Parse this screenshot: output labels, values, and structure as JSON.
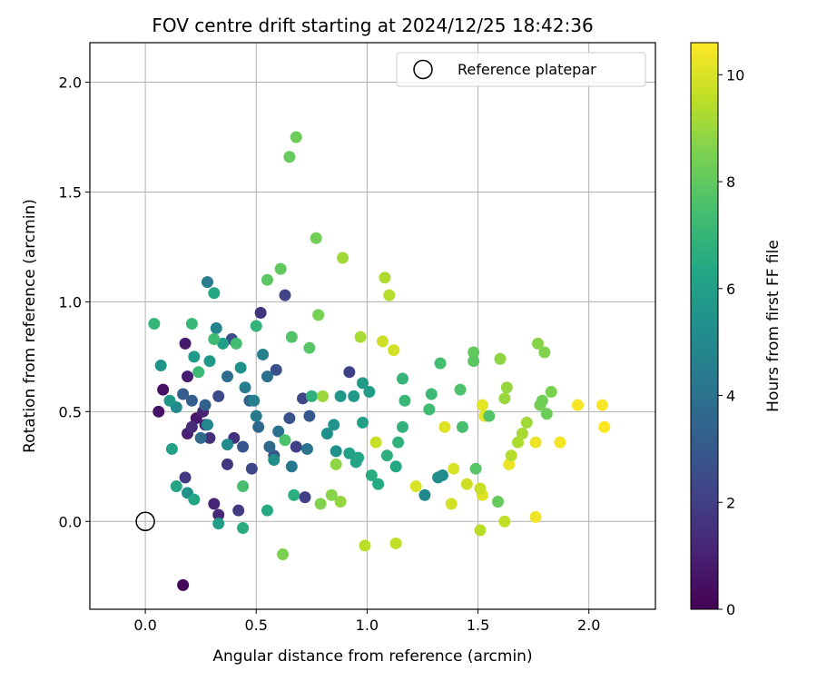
{
  "chart_data": {
    "type": "scatter",
    "title": "FOV centre drift starting at 2024/12/25 18:42:36",
    "xlabel": "Angular distance from reference (arcmin)",
    "ylabel": "Rotation from reference (arcmin)",
    "xlim": [
      -0.25,
      2.3
    ],
    "ylim": [
      -0.4,
      2.18
    ],
    "xticks": [
      0.0,
      0.5,
      1.0,
      1.5,
      2.0
    ],
    "yticks": [
      0.0,
      0.5,
      1.0,
      1.5,
      2.0
    ],
    "grid": true,
    "legend": {
      "placement": "top-right",
      "entries": [
        "Reference platepar"
      ]
    },
    "reference_point": {
      "x": 0.0,
      "y": 0.0,
      "label": "Reference platepar"
    },
    "colorbar": {
      "label": "Hours from first FF file",
      "colormap": "viridis",
      "range": [
        0,
        10.6
      ],
      "ticks": [
        0,
        2,
        4,
        6,
        8,
        10
      ]
    },
    "points": [
      {
        "x": 0.17,
        "y": -0.29,
        "h": 0.2
      },
      {
        "x": 0.08,
        "y": 0.6,
        "h": 0.5
      },
      {
        "x": 0.06,
        "y": 0.5,
        "h": 0.6
      },
      {
        "x": 0.18,
        "y": 0.81,
        "h": 0.8
      },
      {
        "x": 0.19,
        "y": 0.66,
        "h": 0.9
      },
      {
        "x": 0.23,
        "y": 0.47,
        "h": 0.7
      },
      {
        "x": 0.19,
        "y": 0.4,
        "h": 1.0
      },
      {
        "x": 0.31,
        "y": 0.08,
        "h": 1.1
      },
      {
        "x": 0.33,
        "y": 0.03,
        "h": 1.2
      },
      {
        "x": 0.26,
        "y": 0.5,
        "h": 1.1
      },
      {
        "x": 0.52,
        "y": 0.95,
        "h": 1.6
      },
      {
        "x": 0.27,
        "y": 0.44,
        "h": 1.3
      },
      {
        "x": 0.21,
        "y": 0.43,
        "h": 1.4
      },
      {
        "x": 0.29,
        "y": 0.38,
        "h": 1.5
      },
      {
        "x": 0.4,
        "y": 0.38,
        "h": 1.6
      },
      {
        "x": 0.37,
        "y": 0.26,
        "h": 1.7
      },
      {
        "x": 0.18,
        "y": 0.2,
        "h": 1.8
      },
      {
        "x": 0.42,
        "y": 0.05,
        "h": 1.9
      },
      {
        "x": 0.72,
        "y": 0.11,
        "h": 2.0
      },
      {
        "x": 0.92,
        "y": 0.68,
        "h": 2.1
      },
      {
        "x": 0.63,
        "y": 1.03,
        "h": 2.2
      },
      {
        "x": 0.48,
        "y": 0.24,
        "h": 2.3
      },
      {
        "x": 0.33,
        "y": 0.57,
        "h": 2.4
      },
      {
        "x": 0.39,
        "y": 0.83,
        "h": 2.5
      },
      {
        "x": 0.59,
        "y": 0.69,
        "h": 2.6
      },
      {
        "x": 0.65,
        "y": 0.47,
        "h": 2.7
      },
      {
        "x": 0.58,
        "y": 0.3,
        "h": 2.8
      },
      {
        "x": 0.44,
        "y": 0.34,
        "h": 2.9
      },
      {
        "x": 0.68,
        "y": 0.34,
        "h": 2.0
      },
      {
        "x": 0.71,
        "y": 0.56,
        "h": 2.2
      },
      {
        "x": 0.74,
        "y": 0.48,
        "h": 3.0
      },
      {
        "x": 0.17,
        "y": 0.58,
        "h": 3.1
      },
      {
        "x": 0.21,
        "y": 0.55,
        "h": 3.2
      },
      {
        "x": 0.27,
        "y": 0.53,
        "h": 3.3
      },
      {
        "x": 0.47,
        "y": 0.55,
        "h": 3.4
      },
      {
        "x": 0.51,
        "y": 0.43,
        "h": 3.5
      },
      {
        "x": 0.56,
        "y": 0.34,
        "h": 3.6
      },
      {
        "x": 0.25,
        "y": 0.38,
        "h": 3.7
      },
      {
        "x": 0.37,
        "y": 0.66,
        "h": 3.8
      },
      {
        "x": 0.55,
        "y": 0.66,
        "h": 3.9
      },
      {
        "x": 0.6,
        "y": 0.41,
        "h": 4.0
      },
      {
        "x": 0.73,
        "y": 0.33,
        "h": 4.1
      },
      {
        "x": 0.66,
        "y": 0.25,
        "h": 4.2
      },
      {
        "x": 0.5,
        "y": 0.48,
        "h": 4.3
      },
      {
        "x": 0.28,
        "y": 1.09,
        "h": 4.4
      },
      {
        "x": 0.45,
        "y": 0.61,
        "h": 4.5
      },
      {
        "x": 0.49,
        "y": 0.55,
        "h": 4.6
      },
      {
        "x": 0.53,
        "y": 0.76,
        "h": 4.7
      },
      {
        "x": 0.32,
        "y": 0.88,
        "h": 4.8
      },
      {
        "x": 0.28,
        "y": 0.44,
        "h": 4.9
      },
      {
        "x": 0.14,
        "y": 0.52,
        "h": 5.0
      },
      {
        "x": 0.37,
        "y": 0.35,
        "h": 5.1
      },
      {
        "x": 0.58,
        "y": 0.28,
        "h": 5.2
      },
      {
        "x": 0.43,
        "y": 0.7,
        "h": 5.3
      },
      {
        "x": 0.19,
        "y": 0.13,
        "h": 5.4
      },
      {
        "x": 0.07,
        "y": 0.71,
        "h": 5.5
      },
      {
        "x": 0.11,
        "y": 0.55,
        "h": 5.6
      },
      {
        "x": 0.29,
        "y": 0.73,
        "h": 5.7
      },
      {
        "x": 0.22,
        "y": 0.75,
        "h": 5.8
      },
      {
        "x": 0.33,
        "y": -0.01,
        "h": 5.9
      },
      {
        "x": 0.35,
        "y": 0.81,
        "h": 6.0
      },
      {
        "x": 0.12,
        "y": 0.33,
        "h": 6.1
      },
      {
        "x": 0.14,
        "y": 0.16,
        "h": 6.2
      },
      {
        "x": 0.22,
        "y": 0.1,
        "h": 6.3
      },
      {
        "x": 0.31,
        "y": 1.04,
        "h": 6.4
      },
      {
        "x": 0.55,
        "y": 0.05,
        "h": 6.5
      },
      {
        "x": 0.44,
        "y": -0.03,
        "h": 6.6
      },
      {
        "x": 0.67,
        "y": 0.12,
        "h": 6.7
      },
      {
        "x": 0.75,
        "y": 0.57,
        "h": 6.8
      },
      {
        "x": 0.5,
        "y": 0.89,
        "h": 6.9
      },
      {
        "x": 0.04,
        "y": 0.9,
        "h": 7.0
      },
      {
        "x": 0.21,
        "y": 0.9,
        "h": 7.1
      },
      {
        "x": 0.24,
        "y": 0.68,
        "h": 7.2
      },
      {
        "x": 0.31,
        "y": 0.83,
        "h": 7.3
      },
      {
        "x": 0.41,
        "y": 0.81,
        "h": 7.4
      },
      {
        "x": 0.44,
        "y": 0.16,
        "h": 7.5
      },
      {
        "x": 0.63,
        "y": 0.37,
        "h": 7.6
      },
      {
        "x": 0.66,
        "y": 0.84,
        "h": 7.7
      },
      {
        "x": 0.74,
        "y": 0.79,
        "h": 7.8
      },
      {
        "x": 0.55,
        "y": 1.1,
        "h": 7.9
      },
      {
        "x": 0.61,
        "y": 1.15,
        "h": 8.0
      },
      {
        "x": 0.65,
        "y": 1.66,
        "h": 8.1
      },
      {
        "x": 0.68,
        "y": 1.75,
        "h": 8.2
      },
      {
        "x": 0.77,
        "y": 1.29,
        "h": 8.3
      },
      {
        "x": 0.78,
        "y": 0.94,
        "h": 8.4
      },
      {
        "x": 0.62,
        "y": -0.15,
        "h": 8.5
      },
      {
        "x": 0.79,
        "y": 0.08,
        "h": 8.6
      },
      {
        "x": 0.84,
        "y": 0.12,
        "h": 8.7
      },
      {
        "x": 0.86,
        "y": 0.26,
        "h": 8.8
      },
      {
        "x": 0.88,
        "y": 0.09,
        "h": 8.9
      },
      {
        "x": 0.8,
        "y": 0.57,
        "h": 9.0
      },
      {
        "x": 0.89,
        "y": 1.2,
        "h": 9.1
      },
      {
        "x": 0.97,
        "y": 0.84,
        "h": 9.2
      },
      {
        "x": 1.08,
        "y": 1.11,
        "h": 9.3
      },
      {
        "x": 1.1,
        "y": 1.03,
        "h": 9.4
      },
      {
        "x": 0.99,
        "y": -0.11,
        "h": 9.5
      },
      {
        "x": 1.13,
        "y": -0.1,
        "h": 9.6
      },
      {
        "x": 1.04,
        "y": 0.36,
        "h": 9.7
      },
      {
        "x": 1.07,
        "y": 0.82,
        "h": 9.8
      },
      {
        "x": 1.12,
        "y": 0.78,
        "h": 9.9
      },
      {
        "x": 1.22,
        "y": 0.16,
        "h": 10.0
      },
      {
        "x": 1.35,
        "y": 0.43,
        "h": 10.1
      },
      {
        "x": 1.52,
        "y": 0.53,
        "h": 10.2
      },
      {
        "x": 1.64,
        "y": 0.26,
        "h": 10.3
      },
      {
        "x": 1.76,
        "y": 0.02,
        "h": 10.4
      },
      {
        "x": 1.95,
        "y": 0.53,
        "h": 10.5
      },
      {
        "x": 2.07,
        "y": 0.43,
        "h": 10.6
      },
      {
        "x": 2.06,
        "y": 0.53,
        "h": 10.5
      },
      {
        "x": 1.87,
        "y": 0.36,
        "h": 10.4
      },
      {
        "x": 1.76,
        "y": 0.36,
        "h": 10.3
      },
      {
        "x": 1.53,
        "y": 0.48,
        "h": 10.2
      },
      {
        "x": 1.52,
        "y": 0.12,
        "h": 10.1
      },
      {
        "x": 1.39,
        "y": 0.24,
        "h": 10.0
      },
      {
        "x": 1.38,
        "y": 0.08,
        "h": 9.9
      },
      {
        "x": 1.45,
        "y": 0.17,
        "h": 9.8
      },
      {
        "x": 1.51,
        "y": 0.15,
        "h": 9.7
      },
      {
        "x": 1.62,
        "y": 0.0,
        "h": 9.6
      },
      {
        "x": 1.51,
        "y": -0.04,
        "h": 9.5
      },
      {
        "x": 1.65,
        "y": 0.3,
        "h": 9.4
      },
      {
        "x": 1.68,
        "y": 0.36,
        "h": 9.3
      },
      {
        "x": 1.7,
        "y": 0.4,
        "h": 9.2
      },
      {
        "x": 1.72,
        "y": 0.45,
        "h": 9.1
      },
      {
        "x": 1.62,
        "y": 0.56,
        "h": 9.0
      },
      {
        "x": 1.63,
        "y": 0.61,
        "h": 8.9
      },
      {
        "x": 1.6,
        "y": 0.74,
        "h": 8.8
      },
      {
        "x": 1.77,
        "y": 0.81,
        "h": 8.7
      },
      {
        "x": 1.8,
        "y": 0.77,
        "h": 8.6
      },
      {
        "x": 1.83,
        "y": 0.59,
        "h": 8.5
      },
      {
        "x": 1.78,
        "y": 0.53,
        "h": 8.4
      },
      {
        "x": 1.79,
        "y": 0.55,
        "h": 8.3
      },
      {
        "x": 1.81,
        "y": 0.49,
        "h": 8.2
      },
      {
        "x": 1.59,
        "y": 0.09,
        "h": 8.1
      },
      {
        "x": 1.48,
        "y": 0.77,
        "h": 8.0
      },
      {
        "x": 1.48,
        "y": 0.73,
        "h": 7.9
      },
      {
        "x": 1.49,
        "y": 0.24,
        "h": 7.8
      },
      {
        "x": 1.55,
        "y": 0.48,
        "h": 7.7
      },
      {
        "x": 1.42,
        "y": 0.6,
        "h": 7.6
      },
      {
        "x": 1.43,
        "y": 0.43,
        "h": 7.5
      },
      {
        "x": 1.33,
        "y": 0.72,
        "h": 7.4
      },
      {
        "x": 1.28,
        "y": 0.51,
        "h": 7.3
      },
      {
        "x": 1.29,
        "y": 0.58,
        "h": 7.2
      },
      {
        "x": 1.17,
        "y": 0.55,
        "h": 7.1
      },
      {
        "x": 1.16,
        "y": 0.65,
        "h": 7.0
      },
      {
        "x": 1.16,
        "y": 0.43,
        "h": 6.9
      },
      {
        "x": 1.14,
        "y": 0.36,
        "h": 6.8
      },
      {
        "x": 1.09,
        "y": 0.3,
        "h": 6.7
      },
      {
        "x": 1.02,
        "y": 0.21,
        "h": 6.6
      },
      {
        "x": 1.05,
        "y": 0.17,
        "h": 6.5
      },
      {
        "x": 1.13,
        "y": 0.25,
        "h": 6.4
      },
      {
        "x": 0.96,
        "y": 0.29,
        "h": 6.3
      },
      {
        "x": 0.95,
        "y": 0.27,
        "h": 6.2
      },
      {
        "x": 0.92,
        "y": 0.31,
        "h": 6.1
      },
      {
        "x": 0.98,
        "y": 0.45,
        "h": 6.0
      },
      {
        "x": 1.01,
        "y": 0.59,
        "h": 5.9
      },
      {
        "x": 0.98,
        "y": 0.63,
        "h": 5.8
      },
      {
        "x": 0.94,
        "y": 0.57,
        "h": 5.7
      },
      {
        "x": 0.88,
        "y": 0.57,
        "h": 5.6
      },
      {
        "x": 0.85,
        "y": 0.44,
        "h": 5.5
      },
      {
        "x": 0.86,
        "y": 0.32,
        "h": 5.4
      },
      {
        "x": 0.82,
        "y": 0.4,
        "h": 5.3
      },
      {
        "x": 1.32,
        "y": 0.2,
        "h": 5.2
      },
      {
        "x": 1.34,
        "y": 0.21,
        "h": 5.1
      },
      {
        "x": 1.26,
        "y": 0.12,
        "h": 5.0
      }
    ]
  }
}
